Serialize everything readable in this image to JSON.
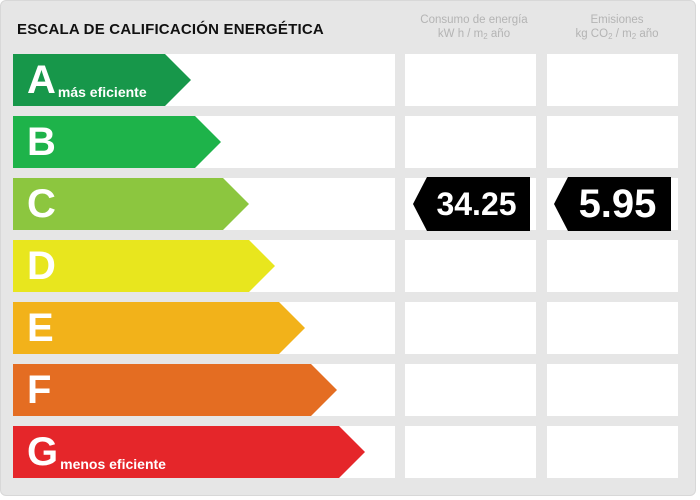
{
  "title": "ESCALA DE CALIFICACIÓN ENERGÉTICA",
  "columns": {
    "consumo": {
      "line1": "Consumo de energía",
      "line2_pre": "kW h / m",
      "line2_sub": "2",
      "line2_post": " año"
    },
    "emisiones": {
      "line1": "Emisiones",
      "line2_pre": "kg CO",
      "line2_sub": "2",
      "line2_mid": " / m",
      "line2_sub2": "2",
      "line2_post": " año"
    }
  },
  "scale": [
    {
      "letter": "A",
      "desc": "más eficiente",
      "color": "#17974a"
    },
    {
      "letter": "B",
      "desc": "",
      "color": "#1eb34a"
    },
    {
      "letter": "C",
      "desc": "",
      "color": "#8cc63f"
    },
    {
      "letter": "D",
      "desc": "",
      "color": "#e8e61e"
    },
    {
      "letter": "E",
      "desc": "",
      "color": "#f2b21a"
    },
    {
      "letter": "F",
      "desc": "",
      "color": "#e46d22"
    },
    {
      "letter": "G",
      "desc": "menos eficiente",
      "color": "#e5262a"
    }
  ],
  "rating": {
    "row": "C",
    "consumo_value": "34.25",
    "emisiones_value": "5.95"
  }
}
